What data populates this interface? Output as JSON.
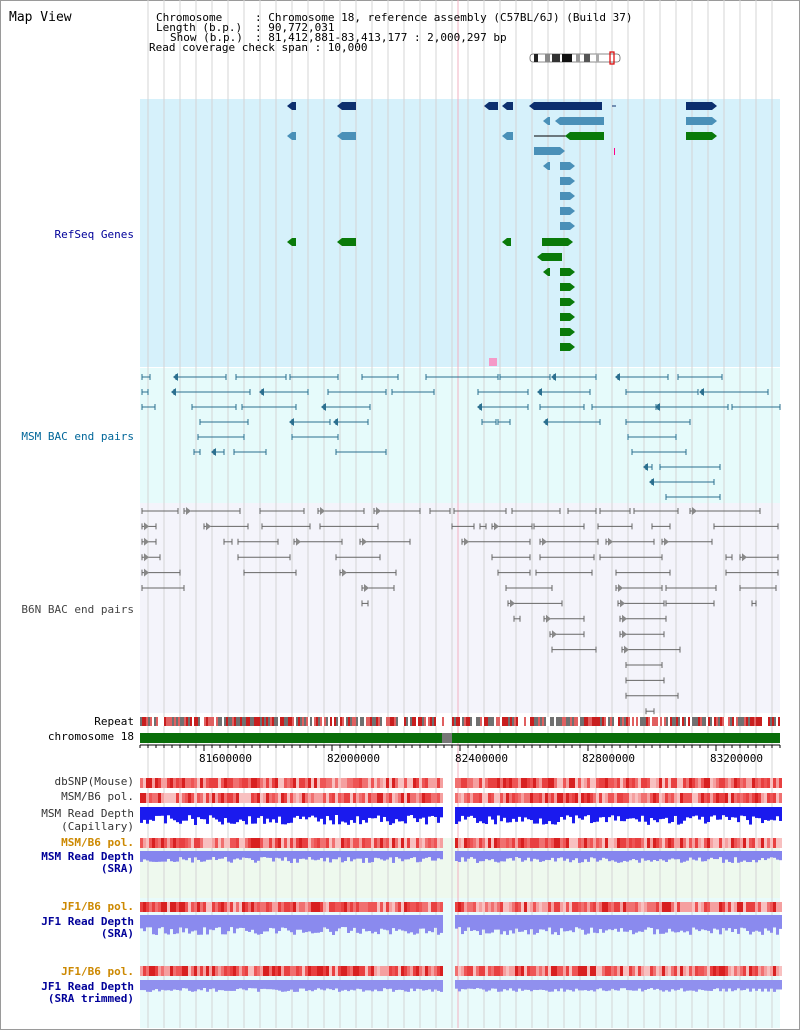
{
  "view_title": "Map View",
  "info": {
    "chromosome_key": "Chromosome",
    "chromosome_val": ": Chromosome 18, reference assembly (C57BL/6J) (Build 37)",
    "length_key": "Length (b.p.)",
    "length_val": ": 90,772,031",
    "show_key": "Show (b.p.)",
    "show_val": ": 81,412,881-83,413,177 : 2,000,297 bp",
    "coverage_text": "Read coverage check span : 10,000"
  },
  "tracks": {
    "refseq": "RefSeq Genes",
    "msm_bac": "MSM BAC end pairs",
    "b6n_bac": "B6N BAC end pairs",
    "repeat": "Repeat",
    "chromosome": "chromosome 18",
    "dbsnp": "dbSNP(Mouse)",
    "msm_b6_pol_1": "MSM/B6 pol.",
    "msm_depth_cap_1": "MSM Read Depth",
    "msm_depth_cap_2": "(Capillary)",
    "msm_b6_pol_2": "MSM/B6 pol.",
    "msm_depth_sra_1": "MSM Read Depth",
    "msm_depth_sra_2": "(SRA)",
    "jf1_b6_pol_1": "JF1/B6 pol.",
    "jf1_depth_sra_1": "JF1 Read Depth",
    "jf1_depth_sra_2": "(SRA)",
    "jf1_b6_pol_2": "JF1/B6 pol.",
    "jf1_depth_trim_1": "JF1 Read Depth",
    "jf1_depth_trim_2": "(SRA trimmed)"
  },
  "axis_ticks": [
    "81600000",
    "82000000",
    "82400000",
    "82800000",
    "83200000"
  ],
  "colors": {
    "refseq_bg": "#d6f1fb",
    "msm_bg": "#e6fbfb",
    "b6n_bg": "#f4f4fb",
    "gene_navy": "#0d2f6e",
    "gene_steel": "#4a90b8",
    "gene_green": "#0a7a0a",
    "msm_line": "#2b6f8f",
    "b6n_line": "#666666",
    "chrom_bar": "#0a6e0a",
    "label_blue": "#000099",
    "label_orange": "#cc8800",
    "label_black": "#000000"
  }
}
